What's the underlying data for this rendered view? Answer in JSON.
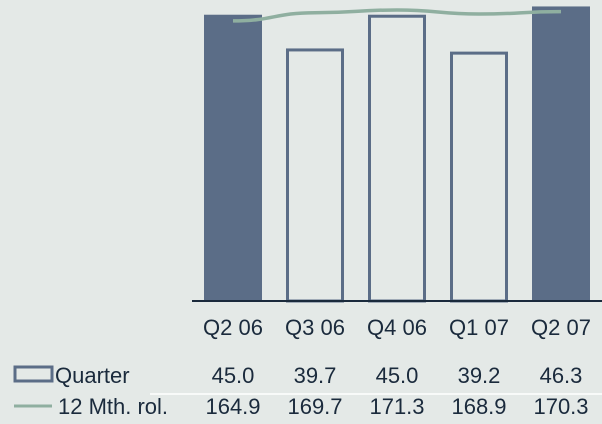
{
  "chart_data": {
    "type": "bar",
    "categories": [
      "Q2 06",
      "Q3 06",
      "Q4 06",
      "Q1 07",
      "Q2 07"
    ],
    "series": [
      {
        "name": "Quarter",
        "kind": "bar",
        "values": [
          45.0,
          39.7,
          45.0,
          39.2,
          46.3
        ],
        "highlighted": [
          true,
          false,
          false,
          false,
          true
        ]
      },
      {
        "name": "12 Mth. rol.",
        "kind": "line",
        "values": [
          164.9,
          169.7,
          171.3,
          168.9,
          170.3
        ]
      }
    ],
    "data_table": {
      "rows": [
        {
          "label": "Quarter",
          "values": [
            "45.0",
            "39.7",
            "45.0",
            "39.2",
            "46.3"
          ]
        },
        {
          "label": "12 Mth. rol.",
          "values": [
            "164.9",
            "169.7",
            "171.3",
            "168.9",
            "170.3"
          ]
        }
      ]
    },
    "title": "",
    "xlabel": "",
    "ylabel": "",
    "ylim_bars": [
      0,
      47
    ],
    "ylim_line": [
      0,
      176
    ],
    "grid": false,
    "legend": "left-of-table"
  },
  "colors": {
    "bar_highlight": "#5b6d87",
    "bar_outline": "#5b6d87",
    "line": "#8fafa0",
    "background": "#e4e9e7",
    "text": "#1a2a3c"
  }
}
